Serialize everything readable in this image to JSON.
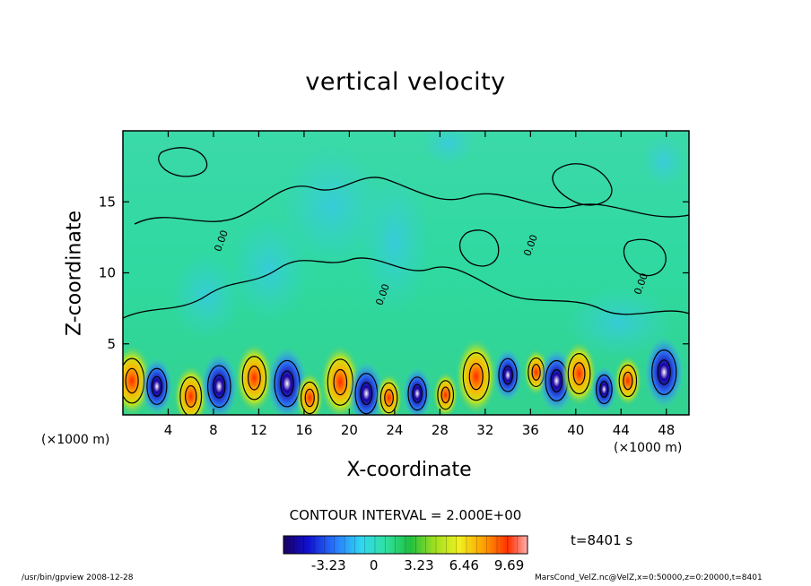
{
  "chart_data": {
    "type": "heatmap",
    "title": "vertical velocity",
    "xlabel": "X-coordinate",
    "ylabel": "Z-coordinate",
    "x_unit_left": "(×1000 m)",
    "x_unit_right": "(×1000 m)",
    "xlim": [
      0,
      50
    ],
    "ylim": [
      0,
      20
    ],
    "x_ticks": [
      4,
      8,
      12,
      16,
      20,
      24,
      28,
      32,
      36,
      40,
      44,
      48
    ],
    "y_ticks": [
      5,
      10,
      15
    ],
    "contour_interval": "CONTOUR INTERVAL = 2.000E+00",
    "contour_labels": [
      "0.00",
      "0.00",
      "0.00",
      "0.00"
    ],
    "colorbar": {
      "range": [
        -6.46,
        11
      ],
      "tick_values": [
        -3.23,
        0,
        3.23,
        6.46,
        9.69
      ],
      "tick_labels": [
        "-3.23",
        "0",
        "3.23",
        "6.46",
        "9.69"
      ]
    },
    "time_label": "t=8401 s",
    "cells": [
      {
        "x": 0.8,
        "z": 2.4,
        "w": 8.5
      },
      {
        "x": 3.0,
        "z": 2.0,
        "w": -5.5
      },
      {
        "x": 6.0,
        "z": 1.3,
        "w": 6.5
      },
      {
        "x": 8.5,
        "z": 2.0,
        "w": -7.5
      },
      {
        "x": 11.6,
        "z": 2.6,
        "w": 8.0
      },
      {
        "x": 14.5,
        "z": 2.2,
        "w": -9.0
      },
      {
        "x": 16.5,
        "z": 1.2,
        "w": 4.0
      },
      {
        "x": 19.2,
        "z": 2.3,
        "w": 9.0
      },
      {
        "x": 21.5,
        "z": 1.5,
        "w": -7.0
      },
      {
        "x": 23.5,
        "z": 1.2,
        "w": 3.5
      },
      {
        "x": 26.0,
        "z": 1.5,
        "w": -4.5
      },
      {
        "x": 28.5,
        "z": 1.4,
        "w": 3.0
      },
      {
        "x": 31.2,
        "z": 2.7,
        "w": 9.5
      },
      {
        "x": 34.0,
        "z": 2.8,
        "w": -4.5
      },
      {
        "x": 36.5,
        "z": 3.0,
        "w": 3.0
      },
      {
        "x": 38.3,
        "z": 2.4,
        "w": -7.0
      },
      {
        "x": 40.3,
        "z": 2.9,
        "w": 7.0
      },
      {
        "x": 42.5,
        "z": 1.8,
        "w": -3.0
      },
      {
        "x": 44.6,
        "z": 2.4,
        "w": 4.0
      },
      {
        "x": 47.8,
        "z": 3.0,
        "w": -8.5
      }
    ]
  },
  "footer": {
    "left": "/usr/bin/gpview   2008-12-28",
    "right": "MarsCond_VelZ.nc@VelZ,x=0:50000,z=0:20000,t=8401"
  },
  "colors": {
    "background_field": "#2fdc9a",
    "axes": "#000000"
  }
}
